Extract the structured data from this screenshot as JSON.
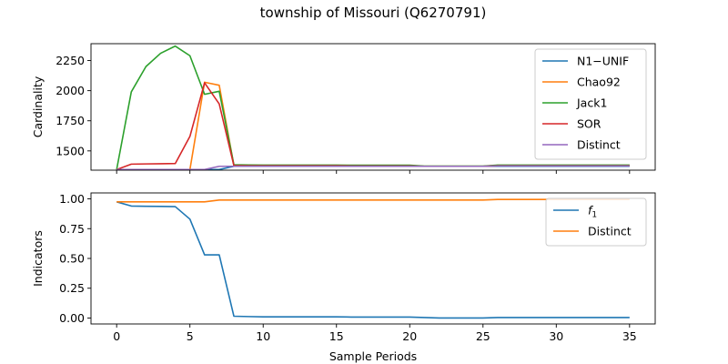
{
  "title": "township of Missouri (Q6270791)",
  "xlabel": "Sample Periods",
  "chart_data": [
    {
      "type": "line",
      "ylabel": "Cardinality",
      "ylim": [
        1340,
        2390
      ],
      "xlim": [
        -1.75,
        36.75
      ],
      "x_ticks": [],
      "x_tick_labels": [],
      "y_ticks": [
        1500,
        1750,
        2000,
        2250
      ],
      "y_tick_labels": [
        "1500",
        "1750",
        "2000",
        "2250"
      ],
      "legend_position": "top-right",
      "x": [
        0,
        1,
        2,
        3,
        4,
        5,
        6,
        7,
        8,
        9,
        10,
        11,
        12,
        13,
        14,
        15,
        16,
        17,
        18,
        19,
        20,
        21,
        22,
        23,
        24,
        25,
        26,
        27,
        28,
        29,
        30,
        31,
        32,
        33,
        34,
        35
      ],
      "series": [
        {
          "name": "N1−UNIF",
          "color": "#1f77b4",
          "values": [
            1345,
            1345,
            1345,
            1345,
            1345,
            1345,
            1345,
            1345,
            1372,
            1372,
            1372,
            1372,
            1372,
            1372,
            1372,
            1372,
            1372,
            1372,
            1372,
            1372,
            1372,
            1372,
            1372,
            1372,
            1372,
            1372,
            1372,
            1372,
            1372,
            1372,
            1372,
            1372,
            1372,
            1372,
            1372,
            1372
          ]
        },
        {
          "name": "Chao92",
          "color": "#ff7f0e",
          "values": [
            1345,
            1345,
            1345,
            1345,
            1345,
            1345,
            2070,
            2045,
            1380,
            1378,
            1378,
            1378,
            1378,
            1378,
            1378,
            1378,
            1377,
            1377,
            1377,
            1377,
            1377,
            1373,
            1373,
            1373,
            1373,
            1373,
            1380,
            1380,
            1380,
            1380,
            1380,
            1380,
            1380,
            1380,
            1380,
            1380
          ]
        },
        {
          "name": "Jack1",
          "color": "#2ca02c",
          "values": [
            1345,
            1990,
            2200,
            2310,
            2370,
            2290,
            1970,
            1995,
            1385,
            1383,
            1382,
            1382,
            1382,
            1382,
            1382,
            1382,
            1381,
            1381,
            1381,
            1381,
            1381,
            1374,
            1374,
            1374,
            1374,
            1374,
            1382,
            1382,
            1382,
            1382,
            1382,
            1382,
            1382,
            1382,
            1382,
            1382
          ]
        },
        {
          "name": "SOR",
          "color": "#d62728",
          "values": [
            1345,
            1390,
            1392,
            1393,
            1395,
            1620,
            2065,
            1890,
            1378,
            1376,
            1376,
            1376,
            1376,
            1376,
            1376,
            1376,
            1375,
            1375,
            1375,
            1375,
            1375,
            1372,
            1372,
            1372,
            1372,
            1372,
            1376,
            1376,
            1376,
            1376,
            1376,
            1376,
            1376,
            1376,
            1376,
            1376
          ]
        },
        {
          "name": "Distinct",
          "color": "#9467bd",
          "values": [
            1345,
            1345,
            1345,
            1345,
            1345,
            1345,
            1345,
            1372,
            1372,
            1372,
            1372,
            1372,
            1372,
            1372,
            1372,
            1372,
            1372,
            1372,
            1372,
            1372,
            1372,
            1372,
            1372,
            1372,
            1372,
            1372,
            1375,
            1375,
            1375,
            1375,
            1375,
            1375,
            1375,
            1375,
            1375,
            1375
          ]
        }
      ]
    },
    {
      "type": "line",
      "ylabel": "Indicators",
      "ylim": [
        -0.05,
        1.05
      ],
      "xlim": [
        -1.75,
        36.75
      ],
      "x_ticks": [
        0,
        5,
        10,
        15,
        20,
        25,
        30,
        35
      ],
      "x_tick_labels": [
        "0",
        "5",
        "10",
        "15",
        "20",
        "25",
        "30",
        "35"
      ],
      "y_ticks": [
        0.0,
        0.25,
        0.5,
        0.75,
        1.0
      ],
      "y_tick_labels": [
        "0.00",
        "0.25",
        "0.50",
        "0.75",
        "1.00"
      ],
      "legend_position": "top-right",
      "x": [
        0,
        1,
        2,
        3,
        4,
        5,
        6,
        7,
        8,
        9,
        10,
        11,
        12,
        13,
        14,
        15,
        16,
        17,
        18,
        19,
        20,
        21,
        22,
        23,
        24,
        25,
        26,
        27,
        28,
        29,
        30,
        31,
        32,
        33,
        34,
        35
      ],
      "series": [
        {
          "name": "f",
          "name_sub": "1",
          "color": "#1f77b4",
          "values": [
            0.975,
            0.94,
            0.938,
            0.937,
            0.935,
            0.83,
            0.53,
            0.53,
            0.015,
            0.012,
            0.01,
            0.01,
            0.01,
            0.01,
            0.01,
            0.01,
            0.008,
            0.008,
            0.008,
            0.008,
            0.008,
            0.004,
            0.0,
            0.0,
            0.0,
            0.0,
            0.004,
            0.004,
            0.004,
            0.004,
            0.004,
            0.004,
            0.004,
            0.004,
            0.004,
            0.004
          ]
        },
        {
          "name": "Distinct",
          "color": "#ff7f0e",
          "values": [
            0.975,
            0.975,
            0.975,
            0.975,
            0.975,
            0.975,
            0.975,
            0.99,
            0.99,
            0.99,
            0.99,
            0.99,
            0.99,
            0.99,
            0.99,
            0.99,
            0.99,
            0.99,
            0.99,
            0.99,
            0.99,
            0.99,
            0.99,
            0.99,
            0.99,
            0.99,
            0.995,
            0.995,
            0.995,
            0.995,
            0.995,
            0.995,
            0.995,
            0.995,
            0.995,
            0.995
          ]
        }
      ]
    }
  ]
}
